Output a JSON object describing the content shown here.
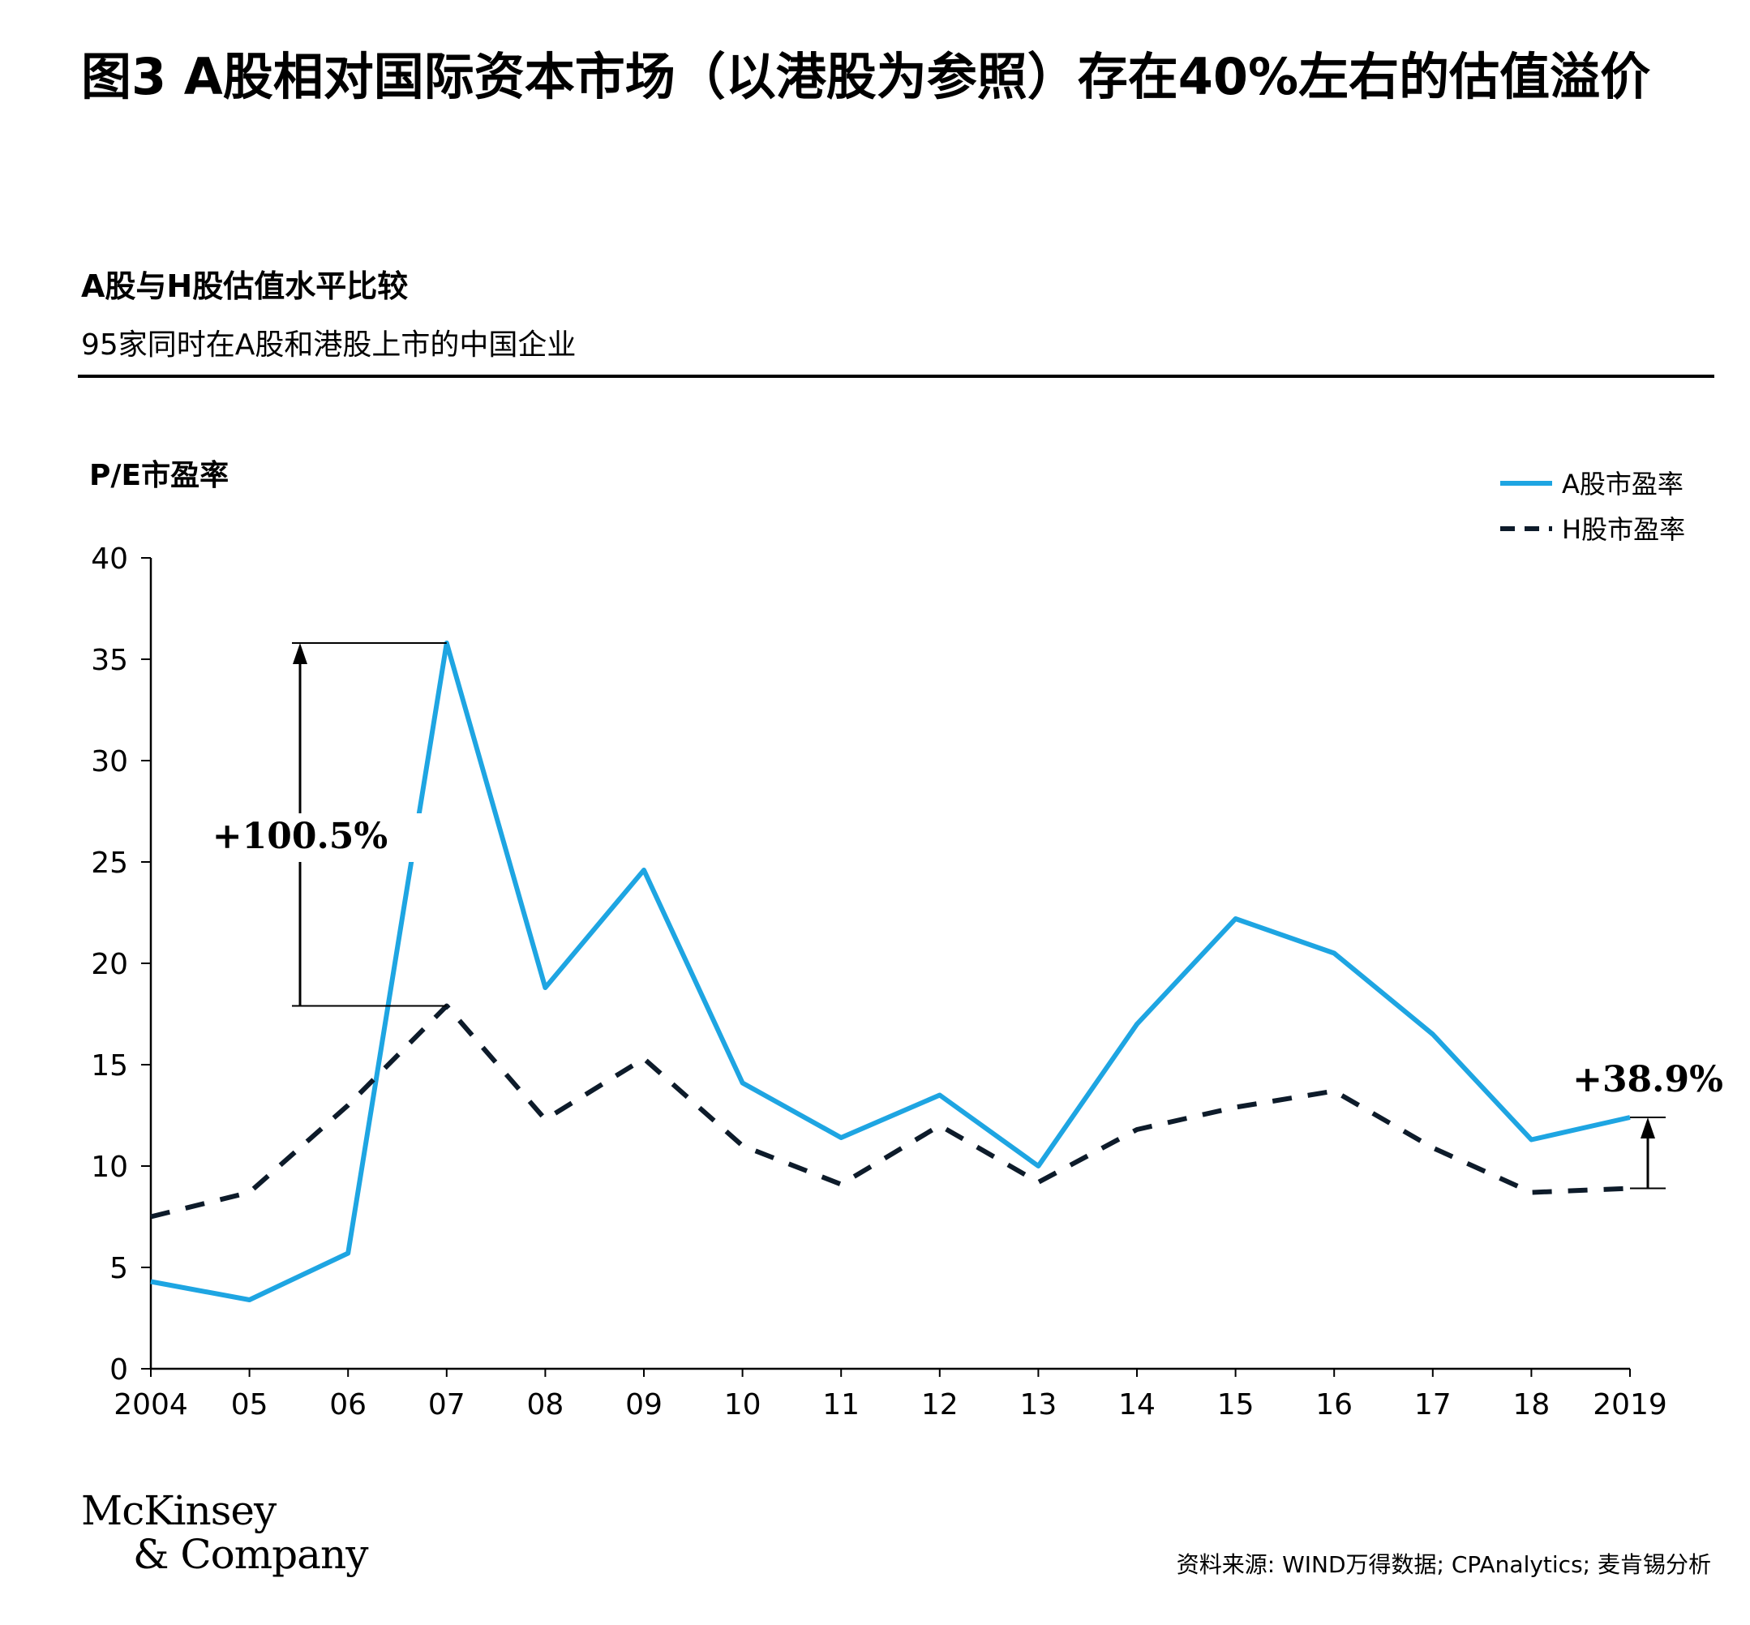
{
  "header": {
    "title": "图3 A股相对国际资本市场（以港股为参照）存在40%左右的估值溢价",
    "subtitle": "A股与H股估值水平比较",
    "description": "95家同时在A股和港股上市的中国企业"
  },
  "footer": {
    "brand_line1": "McKinsey",
    "brand_line2": "& Company",
    "source": "资料来源: WIND万得数据; CPAnalytics; 麦肯锡分析"
  },
  "colors": {
    "a_share": "#1ea5e2",
    "h_share": "#0d1b2a",
    "axis": "#000000"
  },
  "chart_data": {
    "type": "line",
    "ylabel": "P/E市盈率",
    "ylim": [
      0,
      40
    ],
    "yticks": [
      0,
      5,
      10,
      15,
      20,
      25,
      30,
      35,
      40
    ],
    "categories": [
      "2004",
      "05",
      "06",
      "07",
      "08",
      "09",
      "10",
      "11",
      "12",
      "13",
      "14",
      "15",
      "16",
      "17",
      "18",
      "2019"
    ],
    "legend_position": "top-right",
    "grid": false,
    "series": [
      {
        "name": "A股市盈率",
        "style": "solid",
        "values": [
          4.3,
          3.4,
          5.7,
          35.8,
          18.8,
          24.6,
          14.1,
          11.4,
          13.5,
          10.0,
          17.0,
          22.2,
          20.5,
          16.5,
          11.3,
          12.4
        ]
      },
      {
        "name": "H股市盈率",
        "style": "dashed",
        "values": [
          7.5,
          8.7,
          13.0,
          17.9,
          12.3,
          15.3,
          11.0,
          9.1,
          12.0,
          9.2,
          11.8,
          12.9,
          13.7,
          10.9,
          8.7,
          8.9
        ]
      }
    ],
    "annotations": [
      {
        "text": "+100.5%",
        "category": "07",
        "from": 17.9,
        "to": 35.8
      },
      {
        "text": "+38.9%",
        "category": "2019",
        "from": 8.9,
        "to": 12.4
      }
    ]
  }
}
